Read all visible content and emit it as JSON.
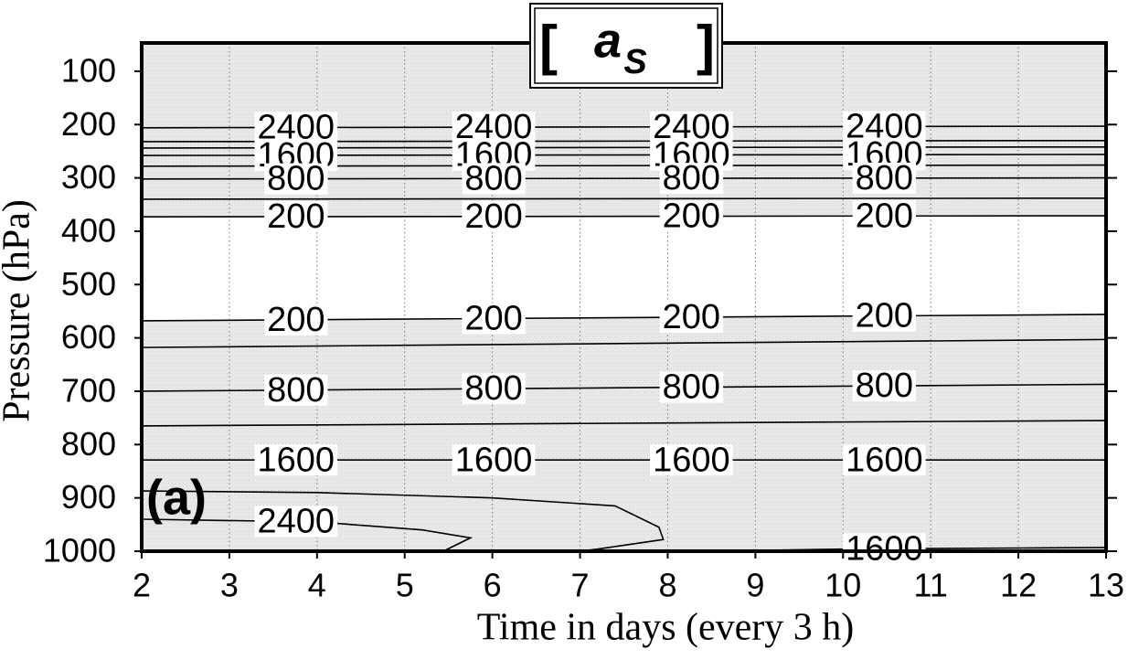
{
  "chart_data": {
    "type": "contour",
    "title": {
      "open": "[",
      "main": "a",
      "sub": "S",
      "close": "]"
    },
    "panel_label": "(a)",
    "x_label": "Time in days (every 3 h)",
    "y_label": "Pressure (hPa)",
    "xlim": [
      2,
      13
    ],
    "xticks": [
      2,
      3,
      4,
      5,
      6,
      7,
      8,
      9,
      10,
      11,
      12,
      13
    ],
    "ylim": [
      1000,
      47
    ],
    "yticks": [
      100,
      200,
      300,
      400,
      500,
      600,
      700,
      800,
      900,
      1000
    ],
    "grid": true,
    "color": "#000000",
    "contours": [
      {
        "level": 2400,
        "x": [
          2,
          13
        ],
        "p": [
          206,
          203
        ]
      },
      {
        "level": null,
        "x": [
          2,
          13
        ],
        "p": [
          232,
          230
        ]
      },
      {
        "level": null,
        "x": [
          2,
          13
        ],
        "p": [
          244,
          242
        ]
      },
      {
        "level": 1600,
        "x": [
          2,
          13
        ],
        "p": [
          258,
          256
        ]
      },
      {
        "level": null,
        "x": [
          2,
          13
        ],
        "p": [
          278,
          276
        ]
      },
      {
        "level": 800,
        "x": [
          2,
          13
        ],
        "p": [
          302,
          300
        ]
      },
      {
        "level": null,
        "x": [
          2,
          13
        ],
        "p": [
          340,
          338
        ]
      },
      {
        "level": 200,
        "x": [
          2,
          13
        ],
        "p": [
          373,
          371
        ]
      },
      {
        "level": 200,
        "x": [
          2,
          13
        ],
        "p": [
          568,
          556
        ]
      },
      {
        "level": null,
        "x": [
          2,
          13
        ],
        "p": [
          618,
          603
        ]
      },
      {
        "level": 800,
        "x": [
          2,
          13
        ],
        "p": [
          700,
          687
        ]
      },
      {
        "level": null,
        "x": [
          2,
          13
        ],
        "p": [
          765,
          755
        ]
      },
      {
        "level": 1600,
        "x": [
          2,
          13
        ],
        "p": [
          829,
          829
        ]
      },
      {
        "level": null,
        "x": [
          2,
          4,
          6,
          7.4,
          7.9,
          7.95,
          7.2,
          7.0
        ],
        "p": [
          887,
          890,
          900,
          915,
          955,
          978,
          996,
          1000
        ]
      },
      {
        "level": 2400,
        "x": [
          2,
          4,
          5.2,
          5.75,
          5.44
        ],
        "p": [
          940,
          945,
          960,
          975,
          1000
        ]
      },
      {
        "level": 1600,
        "x": [
          8.41,
          10,
          12,
          13
        ],
        "p": [
          1000,
          996,
          994,
          993
        ]
      }
    ]
  }
}
